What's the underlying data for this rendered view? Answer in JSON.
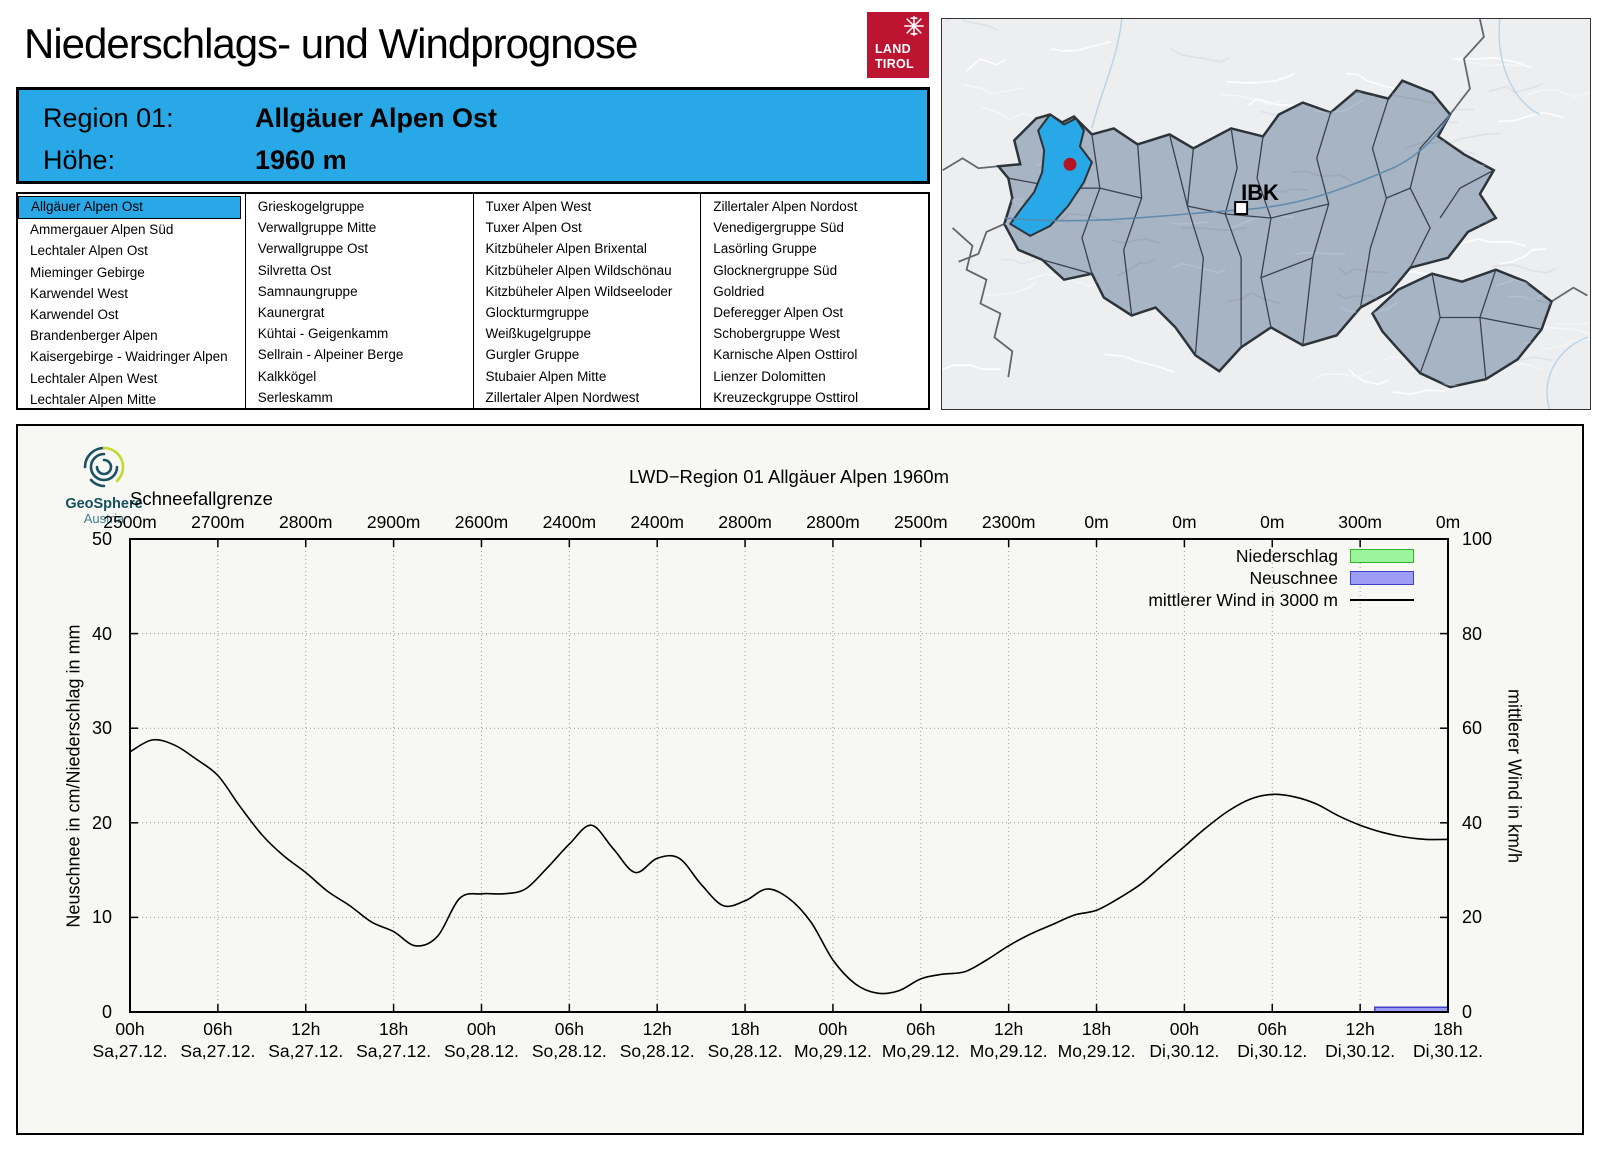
{
  "page": {
    "title": "Niederschlags- und Windprognose"
  },
  "land_tirol_logo": {
    "line1": "LAND",
    "line2": "TIROL",
    "color": "#bd1531"
  },
  "header": {
    "region_label": "Region 01:",
    "region_value": "Allgäuer Alpen Ost",
    "altitude_label": "Höhe:",
    "altitude_value": "1960 m",
    "accent_color": "#29a8e8"
  },
  "region_list": {
    "selected": "Allgäuer Alpen Ost",
    "columns": [
      [
        "Allgäuer Alpen Ost",
        "Ammergauer Alpen Süd",
        "Lechtaler Alpen Ost",
        "Mieminger Gebirge",
        "Karwendel West",
        "Karwendel Ost",
        "Brandenberger Alpen",
        "Kaisergebirge - Waidringer Alpen",
        "Lechtaler Alpen West",
        "Lechtaler Alpen Mitte"
      ],
      [
        "Grieskogelgruppe",
        "Verwallgruppe Mitte",
        "Verwallgruppe Ost",
        "Silvretta Ost",
        "Samnaungruppe",
        "Kaunergrat",
        "Kühtai - Geigenkamm",
        "Sellrain - Alpeiner Berge",
        "Kalkkögel",
        "Serleskamm"
      ],
      [
        "Tuxer Alpen West",
        "Tuxer Alpen Ost",
        "Kitzbüheler Alpen Brixental",
        "Kitzbüheler Alpen Wildschönau",
        "Kitzbüheler Alpen Wildseeloder",
        "Glockturmgruppe",
        "Weißkugelgruppe",
        "Gurgler Gruppe",
        "Stubaier Alpen Mitte",
        "Zillertaler Alpen Nordwest"
      ],
      [
        "Zillertaler Alpen Nordost",
        "Venedigergruppe Süd",
        "Lasörling Gruppe",
        "Glocknergruppe Süd",
        "Goldried",
        "Deferegger Alpen Ost",
        "Schobergruppe West",
        "Karnische Alpen Osttirol",
        "Lienzer Dolomitten",
        "Kreuzeckgruppe Osttirol"
      ]
    ]
  },
  "map": {
    "city_label": "IBK",
    "selected_region_color": "#29a8e8",
    "marker_color": "#b41324"
  },
  "geosphere_logo": {
    "name": "GeoSphere",
    "country": "Austria"
  },
  "chart_data": {
    "type": "line",
    "title": "LWD−Region 01 Allgäuer Alpen 1960m",
    "snowline_label": "Schneefallgrenze",
    "snowline_values": [
      "2500m",
      "2700m",
      "2800m",
      "2900m",
      "2600m",
      "2400m",
      "2400m",
      "2800m",
      "2800m",
      "2500m",
      "2300m",
      "0m",
      "0m",
      "0m",
      "300m",
      "0m"
    ],
    "x_ticks": {
      "times": [
        "00h",
        "06h",
        "12h",
        "18h",
        "00h",
        "06h",
        "12h",
        "18h",
        "00h",
        "06h",
        "12h",
        "18h",
        "00h",
        "06h",
        "12h",
        "18h"
      ],
      "dates": [
        "Sa,27.12.",
        "Sa,27.12.",
        "Sa,27.12.",
        "Sa,27.12.",
        "So,28.12.",
        "So,28.12.",
        "So,28.12.",
        "So,28.12.",
        "Mo,29.12.",
        "Mo,29.12.",
        "Mo,29.12.",
        "Mo,29.12.",
        "Di,30.12.",
        "Di,30.12.",
        "Di,30.12.",
        "Di,30.12."
      ]
    },
    "x_hours_total": 90,
    "ylabel_left": "Neuschnee in cm/Niederschlag in mm",
    "ylabel_right": "mittlerer Wind in km/h",
    "ylim_left": [
      0,
      50
    ],
    "ylim_right": [
      0,
      100
    ],
    "yticks_left": [
      0,
      10,
      20,
      30,
      40,
      50
    ],
    "yticks_right": [
      0,
      20,
      40,
      60,
      80,
      100
    ],
    "grid": true,
    "legend_position": "top-right",
    "legend": [
      {
        "label": "Niederschlag",
        "swatch": "box",
        "fill": "#9cf59c",
        "stroke": "#2db52d"
      },
      {
        "label": "Neuschnee",
        "swatch": "box",
        "fill": "#9d9df5",
        "stroke": "#4040cc"
      },
      {
        "label": "mittlerer Wind in 3000 m",
        "swatch": "line",
        "stroke": "#000000"
      }
    ],
    "series": [
      {
        "name": "mittlerer Wind in 3000 m",
        "type": "line",
        "axis": "right",
        "unit": "km/h",
        "color": "#000000",
        "points_h_kmh": [
          [
            0,
            55
          ],
          [
            1.5,
            57.5
          ],
          [
            3,
            56.5
          ],
          [
            4.5,
            53.5
          ],
          [
            6,
            50
          ],
          [
            7.5,
            43.5
          ],
          [
            9,
            37.5
          ],
          [
            10.5,
            33
          ],
          [
            12,
            29.5
          ],
          [
            13.5,
            25.5
          ],
          [
            15,
            22.5
          ],
          [
            16.5,
            19
          ],
          [
            18,
            17
          ],
          [
            19.5,
            14
          ],
          [
            21,
            16
          ],
          [
            22.5,
            24
          ],
          [
            24,
            25
          ],
          [
            25.5,
            25
          ],
          [
            27,
            26
          ],
          [
            28.5,
            30.5
          ],
          [
            30,
            35.5
          ],
          [
            31.5,
            39.5
          ],
          [
            33,
            34.5
          ],
          [
            34.5,
            29.5
          ],
          [
            36,
            32.5
          ],
          [
            37.5,
            32.5
          ],
          [
            39,
            27
          ],
          [
            40.5,
            22.5
          ],
          [
            42,
            23.5
          ],
          [
            43.5,
            26
          ],
          [
            45,
            24
          ],
          [
            46.5,
            19
          ],
          [
            48,
            11
          ],
          [
            49.5,
            6
          ],
          [
            51,
            4
          ],
          [
            52.5,
            4.5
          ],
          [
            54,
            7
          ],
          [
            55.5,
            8
          ],
          [
            57,
            8.5
          ],
          [
            58.5,
            11
          ],
          [
            60,
            14
          ],
          [
            61.5,
            16.5
          ],
          [
            63,
            18.5
          ],
          [
            64.5,
            20.5
          ],
          [
            66,
            21.5
          ],
          [
            67.5,
            24
          ],
          [
            69,
            27
          ],
          [
            70.5,
            31
          ],
          [
            72,
            35
          ],
          [
            73.5,
            39
          ],
          [
            75,
            42.5
          ],
          [
            76.5,
            45
          ],
          [
            78,
            46
          ],
          [
            79.5,
            45.5
          ],
          [
            81,
            44
          ],
          [
            82.5,
            41.5
          ],
          [
            84,
            39.5
          ],
          [
            85.5,
            38
          ],
          [
            87,
            37
          ],
          [
            88.5,
            36.5
          ],
          [
            90,
            36.5
          ]
        ]
      }
    ],
    "bars": {
      "niederschlag_mm": [],
      "neuschnee_cm": [
        {
          "from_h": 85,
          "to_h": 90,
          "value": 0.5
        }
      ]
    }
  }
}
